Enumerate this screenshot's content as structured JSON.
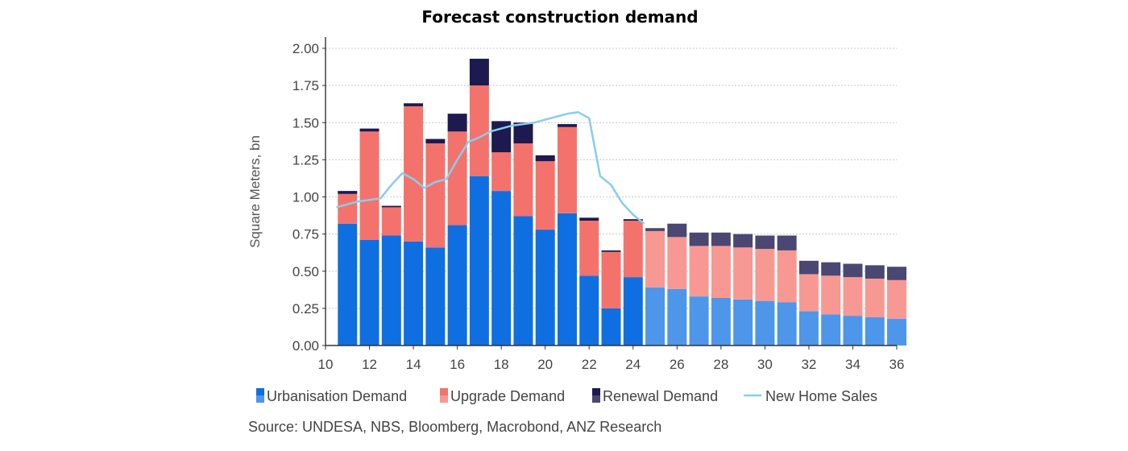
{
  "chart_data": {
    "type": "bar",
    "title": "Forecast construction demand",
    "ylabel": "Square Meters, bn",
    "xlabel": "",
    "ylim": [
      0,
      2.0
    ],
    "yticks": [
      "0.00",
      "0.25",
      "0.50",
      "0.75",
      "1.00",
      "1.25",
      "1.50",
      "1.75",
      "2.00"
    ],
    "xlim": [
      10,
      36
    ],
    "xticks": [
      "10",
      "12",
      "14",
      "16",
      "18",
      "20",
      "22",
      "24",
      "26",
      "28",
      "30",
      "32",
      "34",
      "36"
    ],
    "grid": "horizontal dashed",
    "legend_position": "bottom",
    "forecast_start_x": 25,
    "x": [
      11,
      12,
      13,
      14,
      15,
      16,
      17,
      18,
      19,
      20,
      21,
      22,
      23,
      24,
      25,
      26,
      27,
      28,
      29,
      30,
      31,
      32,
      33,
      34,
      35,
      36
    ],
    "series": [
      {
        "name": "Urbanisation Demand",
        "kind": "bar",
        "color": "#0f6fe0",
        "forecast_color": "#4d96ea",
        "values": [
          0.82,
          0.71,
          0.74,
          0.7,
          0.66,
          0.81,
          1.14,
          1.04,
          0.87,
          0.78,
          0.89,
          0.47,
          0.25,
          0.46,
          0.39,
          0.38,
          0.33,
          0.32,
          0.31,
          0.3,
          0.29,
          0.23,
          0.21,
          0.2,
          0.19,
          0.18
        ]
      },
      {
        "name": "Upgrade Demand",
        "kind": "bar",
        "color": "#f4726c",
        "forecast_color": "#f79892",
        "values": [
          0.2,
          0.73,
          0.19,
          0.91,
          0.7,
          0.63,
          0.61,
          0.26,
          0.49,
          0.46,
          0.58,
          0.37,
          0.38,
          0.38,
          0.38,
          0.35,
          0.34,
          0.35,
          0.35,
          0.35,
          0.35,
          0.25,
          0.26,
          0.26,
          0.26,
          0.26
        ]
      },
      {
        "name": "Renewal Demand",
        "kind": "bar",
        "color": "#1c1a4f",
        "forecast_color": "#4a4772",
        "values": [
          0.02,
          0.02,
          0.01,
          0.02,
          0.03,
          0.12,
          0.18,
          0.21,
          0.14,
          0.04,
          0.02,
          0.02,
          0.01,
          0.01,
          0.02,
          0.09,
          0.09,
          0.09,
          0.09,
          0.09,
          0.1,
          0.09,
          0.09,
          0.09,
          0.09,
          0.09
        ]
      },
      {
        "name": "New Home Sales",
        "kind": "line",
        "color": "#87cdee",
        "x": [
          10.5,
          11,
          11.5,
          12,
          12.5,
          13,
          13.5,
          14,
          14.5,
          15,
          15.5,
          16,
          16.5,
          17,
          17.5,
          18,
          18.5,
          19,
          19.5,
          20,
          20.5,
          21,
          21.5,
          22,
          22.5,
          23,
          23.5,
          24,
          24.5
        ],
        "values": [
          0.93,
          0.95,
          0.97,
          0.98,
          0.99,
          1.08,
          1.16,
          1.12,
          1.06,
          1.1,
          1.12,
          1.25,
          1.37,
          1.4,
          1.44,
          1.46,
          1.48,
          1.49,
          1.5,
          1.52,
          1.54,
          1.56,
          1.57,
          1.53,
          1.14,
          1.08,
          0.96,
          0.88,
          0.82
        ]
      }
    ]
  },
  "legend": [
    {
      "label": "Urbanisation Demand",
      "icon": "two-tone-square-blue"
    },
    {
      "label": "Upgrade Demand",
      "icon": "two-tone-square-salmon"
    },
    {
      "label": "Renewal Demand",
      "icon": "two-tone-square-navy"
    },
    {
      "label": "New Home Sales",
      "icon": "line-light-blue"
    }
  ],
  "source": "Source: UNDESA, NBS, Bloomberg, Macrobond, ANZ Research"
}
